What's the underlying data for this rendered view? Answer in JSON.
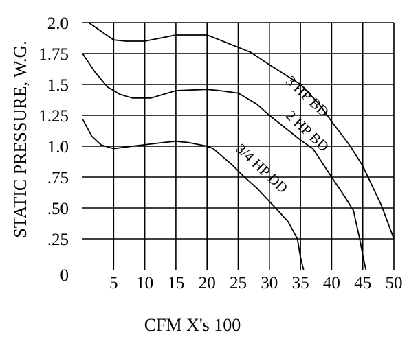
{
  "chart_data": {
    "type": "line",
    "title": "",
    "xlabel": "CFM X's 100",
    "ylabel": "STATIC PRESSURE, W.G.",
    "xlim": [
      0,
      50
    ],
    "ylim": [
      0,
      2.0
    ],
    "grid": true,
    "x_ticks": [
      {
        "value": 0,
        "label": "0"
      },
      {
        "value": 5,
        "label": "5"
      },
      {
        "value": 10,
        "label": "10"
      },
      {
        "value": 15,
        "label": "15"
      },
      {
        "value": 20,
        "label": "20"
      },
      {
        "value": 25,
        "label": "25"
      },
      {
        "value": 30,
        "label": "30"
      },
      {
        "value": 35,
        "label": "35"
      },
      {
        "value": 40,
        "label": "40"
      },
      {
        "value": 45,
        "label": "45"
      },
      {
        "value": 50,
        "label": "50"
      }
    ],
    "y_ticks": [
      {
        "value": 0,
        "label": "0"
      },
      {
        "value": 0.25,
        "label": ".25"
      },
      {
        "value": 0.5,
        "label": ".50"
      },
      {
        "value": 0.75,
        "label": ".75"
      },
      {
        "value": 1.0,
        "label": "1.0"
      },
      {
        "value": 1.25,
        "label": "1.25"
      },
      {
        "value": 1.5,
        "label": "1.5"
      },
      {
        "value": 1.75,
        "label": "1.75"
      },
      {
        "value": 2.0,
        "label": "2.0"
      }
    ],
    "series": [
      {
        "name": "3 HP BD",
        "label_anchor": [
          32.5,
          1.52
        ],
        "label_angle": 43,
        "points": [
          [
            1,
            2.0
          ],
          [
            3,
            1.93
          ],
          [
            5,
            1.86
          ],
          [
            7,
            1.85
          ],
          [
            10,
            1.85
          ],
          [
            13,
            1.88
          ],
          [
            15,
            1.9
          ],
          [
            20,
            1.9
          ],
          [
            21,
            1.88
          ],
          [
            27,
            1.76
          ],
          [
            30,
            1.66
          ],
          [
            35,
            1.5
          ],
          [
            38,
            1.34
          ],
          [
            40,
            1.2
          ],
          [
            43,
            1.0
          ],
          [
            45,
            0.84
          ],
          [
            48,
            0.52
          ],
          [
            50,
            0.25
          ]
        ]
      },
      {
        "name": "2 HP BD",
        "label_anchor": [
          32.5,
          1.24
        ],
        "label_angle": 43,
        "points": [
          [
            0,
            1.75
          ],
          [
            2,
            1.6
          ],
          [
            4,
            1.48
          ],
          [
            6,
            1.42
          ],
          [
            8,
            1.39
          ],
          [
            11,
            1.39
          ],
          [
            13,
            1.42
          ],
          [
            15,
            1.45
          ],
          [
            20,
            1.46
          ],
          [
            22,
            1.45
          ],
          [
            25,
            1.43
          ],
          [
            28,
            1.34
          ],
          [
            30,
            1.25
          ],
          [
            35,
            1.05
          ],
          [
            37,
            0.98
          ],
          [
            40,
            0.75
          ],
          [
            42,
            0.6
          ],
          [
            43.5,
            0.48
          ],
          [
            44.5,
            0.25
          ],
          [
            45,
            0.12
          ],
          [
            45.5,
            0
          ]
        ]
      },
      {
        "name": "3/4 HP DD",
        "label_anchor": [
          24.5,
          0.97
        ],
        "label_angle": 43,
        "points": [
          [
            0,
            1.22
          ],
          [
            1.5,
            1.08
          ],
          [
            3,
            1.01
          ],
          [
            5,
            0.98
          ],
          [
            8,
            1.0
          ],
          [
            13,
            1.03
          ],
          [
            15,
            1.04
          ],
          [
            17,
            1.03
          ],
          [
            20,
            1.0
          ],
          [
            21,
            0.98
          ],
          [
            24,
            0.85
          ],
          [
            26,
            0.75
          ],
          [
            28,
            0.66
          ],
          [
            31,
            0.5
          ],
          [
            33,
            0.39
          ],
          [
            34.5,
            0.25
          ],
          [
            35,
            0.1
          ],
          [
            35.5,
            0
          ]
        ]
      }
    ]
  }
}
